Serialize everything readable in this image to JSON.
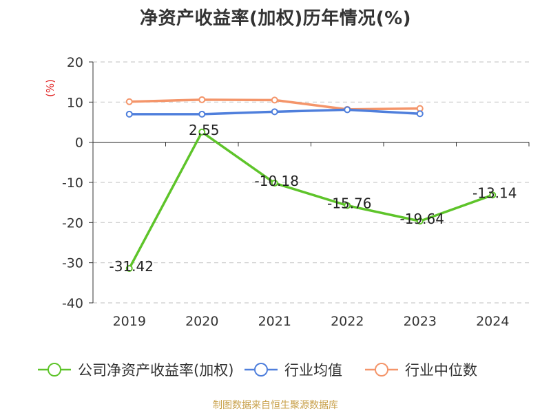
{
  "title": "净资产收益率(加权)历年情况(%)",
  "source": "制图数据来自恒生聚源数据库",
  "colors": {
    "company": "#5ec42a",
    "industry_avg": "#4f7fdc",
    "industry_median": "#f4956a",
    "grid": "#cccccc",
    "axis": "#333333",
    "ylabel": "#e02020",
    "text": "#333333"
  },
  "chart_data": {
    "type": "line",
    "title": "净资产收益率(加权)历年情况(%)",
    "ylabel": "(%)",
    "xlabel": "",
    "categories": [
      "2019",
      "2020",
      "2021",
      "2022",
      "2023",
      "2024"
    ],
    "ylim": [
      -40,
      20
    ],
    "yticks": [
      20,
      10,
      0,
      -10,
      -20,
      -30,
      -40
    ],
    "grid": true,
    "legend_position": "bottom",
    "series": [
      {
        "name": "公司净资产收益率(加权)",
        "key": "company",
        "values": [
          -31.42,
          2.55,
          -10.18,
          -15.76,
          -19.64,
          -13.14
        ],
        "labels": [
          "-31.42",
          "2.55",
          "-10.18",
          "-15.76",
          "-19.64",
          "-13.14"
        ]
      },
      {
        "name": "行业均值",
        "key": "industry_avg",
        "values": [
          7.0,
          7.0,
          7.6,
          8.1,
          7.1,
          null
        ]
      },
      {
        "name": "行业中位数",
        "key": "industry_median",
        "values": [
          10.1,
          10.6,
          10.5,
          8.2,
          8.4,
          null
        ]
      }
    ]
  }
}
